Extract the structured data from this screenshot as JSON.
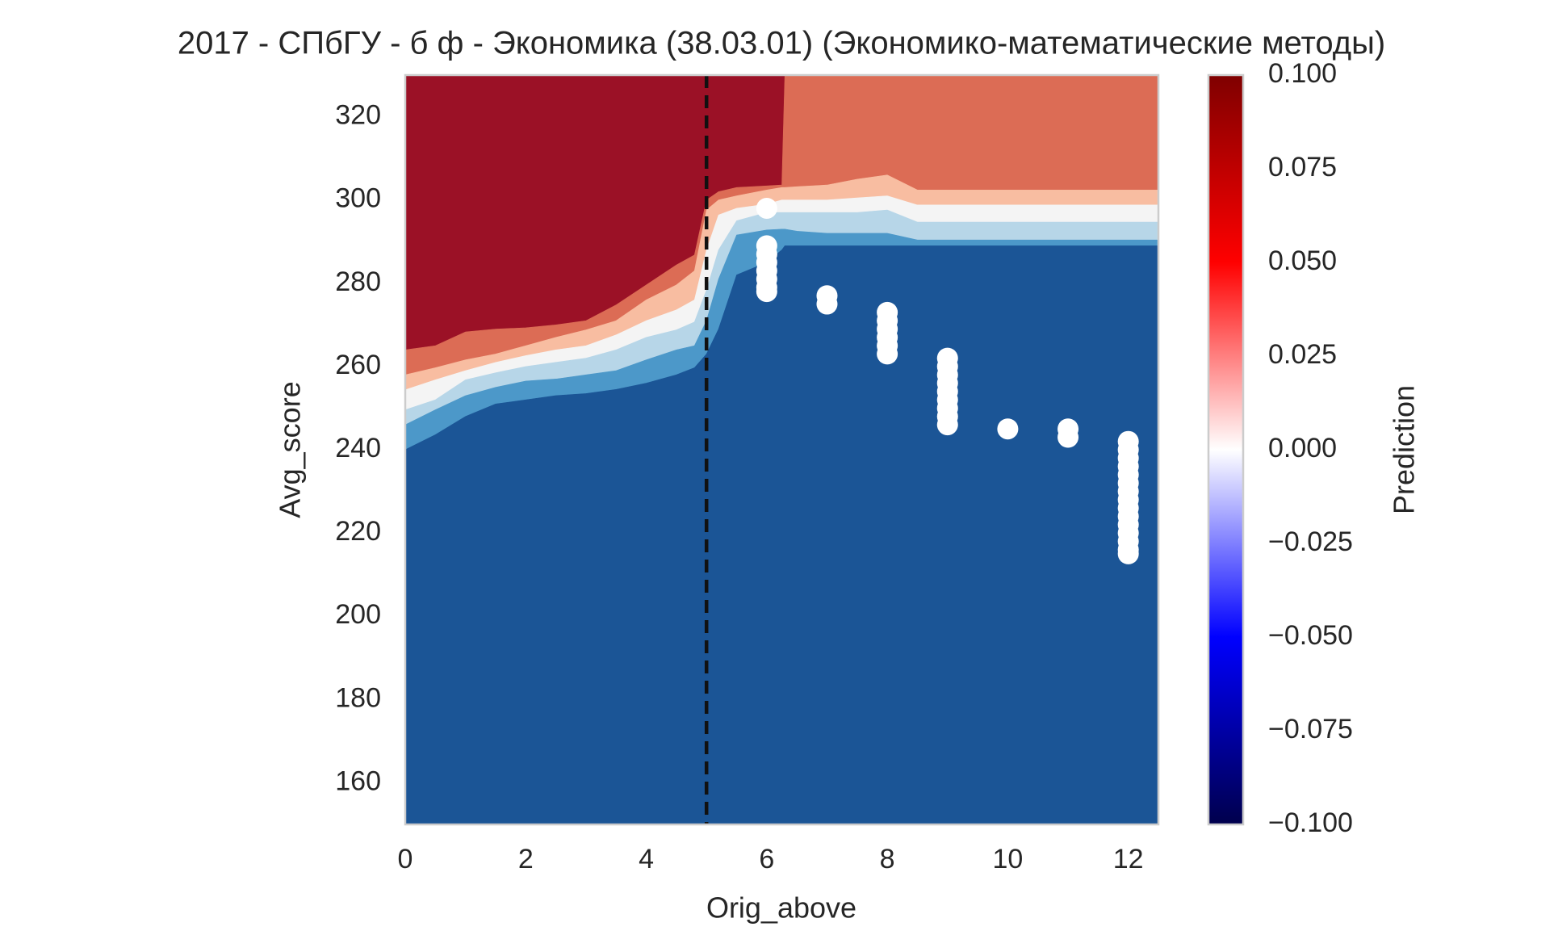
{
  "chart_data": {
    "type": "contour",
    "title": "2017 - СПбГУ - б ф - Экономика (38.03.01) (Экономико-математические методы)",
    "xlabel": "Orig_above",
    "ylabel": "Avg_score",
    "xlim": [
      0,
      12.5
    ],
    "ylim": [
      150,
      330
    ],
    "xticks": [
      0,
      2,
      4,
      6,
      8,
      10,
      12
    ],
    "yticks": [
      160,
      180,
      200,
      220,
      240,
      260,
      280,
      300,
      320
    ],
    "grid": false,
    "grid_x": [
      0,
      0.5,
      1,
      1.5,
      2,
      2.5,
      3,
      3.5,
      4,
      4.5,
      4.8,
      5,
      5.2,
      5.5,
      6,
      6.25,
      6.3,
      6.5,
      7,
      7.5,
      8,
      8.5,
      9,
      10,
      11,
      12,
      12.5
    ],
    "bands": [
      {
        "color": "#1b5596",
        "upper": [
          240,
          243.6,
          248,
          251,
          252,
          253,
          253.5,
          254.5,
          256,
          258,
          259.7,
          263,
          269,
          282,
          285,
          288,
          289,
          289,
          289,
          289,
          289,
          289,
          289,
          289,
          289,
          289,
          289
        ]
      },
      {
        "color": "#4c98c9",
        "upper": [
          246,
          249.6,
          253,
          255,
          256.5,
          257,
          258,
          259,
          261.6,
          264,
          265,
          271,
          281,
          291.6,
          292.8,
          293,
          293,
          292.5,
          292,
          292,
          292,
          290.4,
          290.4,
          290.4,
          290.4,
          290.4,
          290.4
        ]
      },
      {
        "color": "#b7d6e8",
        "upper": [
          249.6,
          252,
          256.8,
          258.5,
          260,
          261,
          262,
          264,
          267,
          268.8,
          270.7,
          278.4,
          288,
          295,
          297,
          297,
          297,
          297,
          297,
          297,
          297.6,
          294.7,
          294.7,
          294.7,
          294.7,
          294.7,
          294.7
        ]
      },
      {
        "color": "#f4f4f4",
        "upper": [
          254.4,
          256.8,
          259,
          261,
          262.6,
          264,
          265,
          267.6,
          271,
          273.6,
          276,
          288,
          296.4,
          298,
          299,
          300,
          300,
          300,
          300,
          300.5,
          301,
          298.8,
          298.8,
          298.8,
          298.8,
          298.8,
          298.8
        ]
      },
      {
        "color": "#f8bda1",
        "upper": [
          258,
          259.7,
          261.6,
          263,
          265,
          267,
          268.8,
          271,
          276,
          279.6,
          283,
          297.6,
          300,
          301,
          302.4,
          303,
          303,
          303.2,
          303.6,
          305,
          306,
          302.4,
          302.4,
          302.4,
          302.4,
          302.4,
          302.4
        ]
      },
      {
        "color": "#dc6c55",
        "upper": [
          264,
          265,
          268.3,
          269,
          269.3,
          270,
          271,
          274.8,
          279.6,
          284.4,
          286.8,
          300,
          302,
          303,
          303.4,
          303.6,
          330,
          330,
          330,
          330,
          330,
          330,
          330,
          330,
          330,
          330,
          330
        ]
      },
      {
        "color": "#9b1126"
      }
    ],
    "vline": {
      "x": 5,
      "color": "#111111"
    },
    "points": {
      "color": "#ffffff",
      "x": [
        6,
        6,
        6,
        6,
        6,
        6,
        6,
        6,
        7,
        7,
        8,
        8,
        8,
        8,
        8,
        8,
        9,
        9,
        9,
        9,
        9,
        9,
        9,
        9,
        9,
        10,
        11,
        11,
        12,
        12,
        12,
        12,
        12,
        12,
        12,
        12,
        12,
        12,
        12,
        12,
        12,
        12,
        12
      ],
      "y": [
        298,
        289,
        287,
        285,
        283,
        281,
        279,
        278,
        277,
        275,
        273,
        271,
        269,
        267,
        265,
        263,
        262,
        260,
        258,
        256,
        254,
        252,
        250,
        248,
        246,
        245,
        245,
        243,
        242,
        240,
        238,
        236,
        234,
        232,
        230,
        228,
        226,
        224,
        222,
        220,
        218,
        216,
        215
      ]
    },
    "colorbar": {
      "label": "Prediction",
      "clim": [
        -0.1,
        0.1
      ],
      "colors": [
        "#00004c",
        "#0000ff",
        "#ffffff",
        "#ff0000",
        "#7f0000"
      ],
      "ticks": [
        {
          "value": -0.1,
          "label": "−0.100"
        },
        {
          "value": -0.075,
          "label": "−0.075"
        },
        {
          "value": -0.05,
          "label": "−0.050"
        },
        {
          "value": -0.025,
          "label": "−0.025"
        },
        {
          "value": 0,
          "label": "0.000"
        },
        {
          "value": 0.025,
          "label": "0.025"
        },
        {
          "value": 0.05,
          "label": "0.050"
        },
        {
          "value": 0.075,
          "label": "0.075"
        },
        {
          "value": 0.1,
          "label": "0.100"
        }
      ]
    }
  }
}
